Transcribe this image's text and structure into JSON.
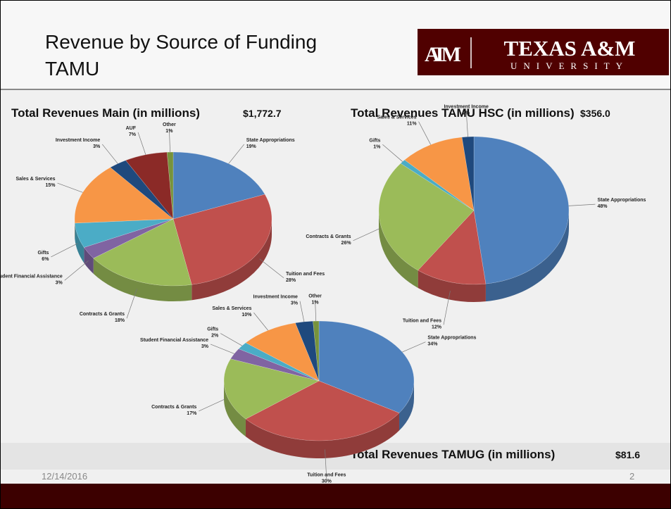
{
  "slide_title": "Revenue by Source of Funding TAMU",
  "logo": {
    "mark": "ATM",
    "name": "TEXAS A&M",
    "subtitle": "UNIVERSITY"
  },
  "date": "12/14/2016",
  "page": "2",
  "chart_data": [
    {
      "type": "pie",
      "title": "Total Revenues Main (in millions)",
      "total": {
        "value": 1772.7,
        "label": "$1,772.7"
      },
      "categories": [
        "State Appropriations",
        "Tuition and Fees",
        "Contracts & Grants",
        "Student Financial Assistance",
        "Gifts",
        "Sales & Services",
        "Investment Income",
        "AUF",
        "Other"
      ],
      "values": [
        19,
        28,
        18,
        3,
        6,
        15,
        3,
        7,
        1
      ],
      "value_labels": [
        "19%",
        "28%",
        "18%",
        "3%",
        "6%",
        "15%",
        "3%",
        "7%",
        "1%"
      ],
      "colors": [
        "#4f81bd",
        "#c0504d",
        "#9bbb59",
        "#8064a2",
        "#4bacc6",
        "#f79646",
        "#1f497d",
        "#8b2a27",
        "#77933c"
      ]
    },
    {
      "type": "pie",
      "title": "Total Revenues TAMU HSC (in millions)",
      "total": {
        "value": 356.0,
        "label": "$356.0"
      },
      "categories": [
        "State Appropriations",
        "Tuition and Fees",
        "Contracts & Grants",
        "Gifts",
        "Sales & Services",
        "Investment Income"
      ],
      "values": [
        48,
        12,
        26,
        1,
        11,
        2
      ],
      "value_labels": [
        "48%",
        "12%",
        "26%",
        "1%",
        "11%",
        "2%"
      ],
      "colors": [
        "#4f81bd",
        "#c0504d",
        "#9bbb59",
        "#4bacc6",
        "#f79646",
        "#1f497d"
      ]
    },
    {
      "type": "pie",
      "title": "Total Revenues TAMUG (in millions)",
      "total": {
        "value": 81.6,
        "label": "$81.6"
      },
      "categories": [
        "State Appropriations",
        "Tuition and Fees",
        "Contracts & Grants",
        "Student Financial Assistance",
        "Gifts",
        "Sales & Services",
        "Investment Income",
        "Other"
      ],
      "values": [
        34,
        30,
        17,
        3,
        2,
        10,
        3,
        1
      ],
      "value_labels": [
        "34%",
        "30%",
        "17%",
        "3%",
        "2%",
        "10%",
        "3%",
        "1%"
      ],
      "colors": [
        "#4f81bd",
        "#c0504d",
        "#9bbb59",
        "#8064a2",
        "#4bacc6",
        "#f79646",
        "#1f497d",
        "#77933c"
      ]
    }
  ]
}
